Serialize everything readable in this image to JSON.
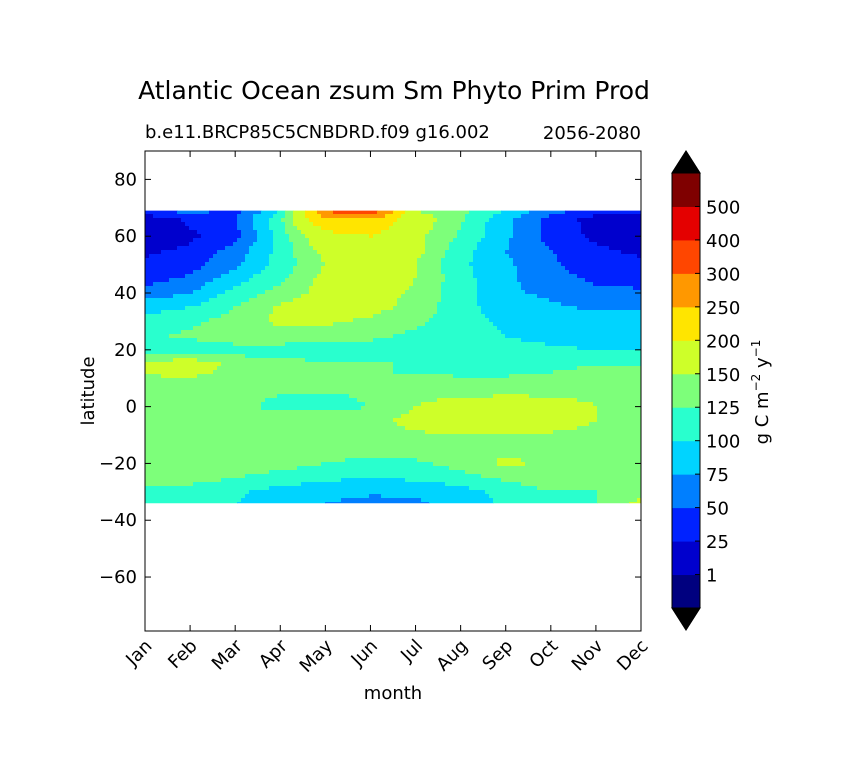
{
  "chart_data": {
    "type": "heatmap",
    "title": "Atlantic Ocean zsum Sm Phyto Prim Prod",
    "subtitle_left": "b.e11.BRCP85C5CNBDRD.f09 g16.002",
    "subtitle_right": "2056-2080",
    "xlabel": "month",
    "ylabel": "latitude",
    "x_ticks": [
      "Jan",
      "Feb",
      "Mar",
      "Apr",
      "May",
      "Jun",
      "Jul",
      "Aug",
      "Sep",
      "Oct",
      "Nov",
      "Dec"
    ],
    "y_ticks": [
      "80",
      "60",
      "40",
      "20",
      "0",
      "−20",
      "−40",
      "−60"
    ],
    "ylim": [
      -79,
      90
    ],
    "data_lat_range": [
      -34,
      69
    ],
    "colorbar": {
      "label": "g C m",
      "label_sup1": "−2",
      "label_mid": " y",
      "label_sup2": "−1",
      "levels": [
        "1",
        "25",
        "50",
        "75",
        "100",
        "125",
        "150",
        "200",
        "250",
        "300",
        "400",
        "500"
      ],
      "colors": [
        "#00007f",
        "#0000cd",
        "#0022ff",
        "#007fff",
        "#00d4ff",
        "#29ffce",
        "#7dff7a",
        "#ceff29",
        "#ffe500",
        "#ff9800",
        "#ff4600",
        "#e40000",
        "#7f0000"
      ],
      "extend": "both"
    },
    "field": {
      "description_rows_lat": [
        69,
        66,
        60,
        55,
        50,
        45,
        40,
        35,
        30,
        25,
        20,
        15,
        12,
        8,
        4,
        0,
        -5,
        -10,
        -15,
        -20,
        -25,
        -30,
        -34
      ],
      "rows": [
        [
          40,
          60,
          40,
          100,
          300,
          350,
          150,
          130,
          100,
          60,
          40,
          30
        ],
        [
          10,
          30,
          50,
          120,
          250,
          250,
          170,
          130,
          80,
          40,
          15,
          10
        ],
        [
          10,
          20,
          40,
          110,
          180,
          200,
          160,
          120,
          80,
          40,
          20,
          10
        ],
        [
          20,
          30,
          60,
          110,
          160,
          180,
          160,
          110,
          75,
          50,
          30,
          20
        ],
        [
          30,
          40,
          70,
          110,
          150,
          170,
          150,
          105,
          80,
          55,
          35,
          30
        ],
        [
          40,
          55,
          90,
          120,
          160,
          170,
          150,
          110,
          80,
          60,
          45,
          40
        ],
        [
          60,
          75,
          110,
          135,
          160,
          165,
          145,
          110,
          80,
          70,
          55,
          55
        ],
        [
          90,
          100,
          125,
          155,
          165,
          160,
          140,
          110,
          85,
          80,
          70,
          70
        ],
        [
          110,
          120,
          135,
          155,
          155,
          145,
          130,
          110,
          95,
          90,
          85,
          85
        ],
        [
          120,
          130,
          140,
          140,
          135,
          130,
          120,
          110,
          100,
          95,
          90,
          90
        ],
        [
          105,
          110,
          115,
          115,
          115,
          115,
          112,
          110,
          105,
          103,
          100,
          100
        ],
        [
          160,
          170,
          140,
          130,
          128,
          126,
          124,
          120,
          118,
          116,
          118,
          120
        ],
        [
          155,
          160,
          140,
          130,
          128,
          126,
          124,
          122,
          120,
          125,
          140,
          150
        ],
        [
          135,
          135,
          140,
          140,
          140,
          140,
          135,
          130,
          135,
          140,
          145,
          140
        ],
        [
          130,
          130,
          130,
          125,
          120,
          130,
          135,
          140,
          150,
          145,
          140,
          135
        ],
        [
          130,
          130,
          130,
          120,
          118,
          125,
          150,
          190,
          200,
          180,
          150,
          130
        ],
        [
          130,
          130,
          130,
          135,
          140,
          140,
          160,
          180,
          185,
          170,
          150,
          140
        ],
        [
          130,
          135,
          140,
          140,
          140,
          140,
          145,
          150,
          150,
          145,
          140,
          135
        ],
        [
          135,
          140,
          140,
          140,
          140,
          140,
          140,
          140,
          145,
          145,
          140,
          140
        ],
        [
          140,
          140,
          140,
          135,
          125,
          115,
          120,
          135,
          155,
          145,
          140,
          150
        ],
        [
          135,
          135,
          125,
          115,
          105,
          100,
          105,
          115,
          130,
          140,
          140,
          135
        ],
        [
          115,
          115,
          105,
          90,
          85,
          80,
          80,
          90,
          110,
          125,
          125,
          130
        ],
        [
          110,
          110,
          100,
          85,
          75,
          65,
          70,
          85,
          105,
          120,
          125,
          160
        ]
      ]
    }
  }
}
